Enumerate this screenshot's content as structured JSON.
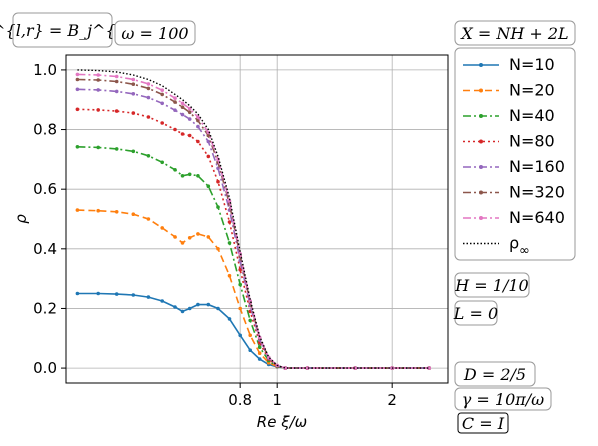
{
  "annotations": {
    "basis": "B^{l,r} = B_j^{l,r}",
    "omega": "ω = 100",
    "xdef": "X = NH + 2L",
    "H": "H = 1/10",
    "L": "L = 0",
    "D": "D = 2/5",
    "gamma": "γ = 10π/ω",
    "C": "C = I"
  },
  "chart_data": {
    "type": "line",
    "xlabel": "Re ξ/ω",
    "ylabel": "ρ",
    "xscale": "log",
    "xlim": [
      0.28,
      2.8
    ],
    "ylim": [
      -0.05,
      1.05
    ],
    "xticks": [
      {
        "value": 0.8,
        "label": "0.8"
      },
      {
        "value": 1,
        "label": "1"
      },
      {
        "value": 2,
        "label": "2"
      }
    ],
    "yticks": [
      {
        "value": 0.0,
        "label": "0.0"
      },
      {
        "value": 0.2,
        "label": "0.2"
      },
      {
        "value": 0.4,
        "label": "0.4"
      },
      {
        "value": 0.6,
        "label": "0.6"
      },
      {
        "value": 0.8,
        "label": "0.8"
      },
      {
        "value": 1.0,
        "label": "1.0"
      }
    ],
    "grid": true,
    "legend_position": "right",
    "series": [
      {
        "name": "N=10",
        "color": "#1f77b4",
        "dash": "solid",
        "marker": true,
        "points": [
          [
            0.3,
            0.25
          ],
          [
            0.34,
            0.25
          ],
          [
            0.38,
            0.248
          ],
          [
            0.42,
            0.245
          ],
          [
            0.46,
            0.238
          ],
          [
            0.5,
            0.225
          ],
          [
            0.54,
            0.205
          ],
          [
            0.565,
            0.19
          ],
          [
            0.59,
            0.2
          ],
          [
            0.62,
            0.213
          ],
          [
            0.66,
            0.213
          ],
          [
            0.7,
            0.2
          ],
          [
            0.75,
            0.165
          ],
          [
            0.8,
            0.11
          ],
          [
            0.85,
            0.06
          ],
          [
            0.9,
            0.03
          ],
          [
            0.95,
            0.012
          ],
          [
            1.0,
            0.004
          ],
          [
            1.05,
            0.0
          ],
          [
            1.2,
            0.0
          ],
          [
            1.6,
            0.0
          ],
          [
            2.0,
            0.0
          ],
          [
            2.5,
            0.0
          ]
        ]
      },
      {
        "name": "N=20",
        "color": "#ff7f0e",
        "dash": "dashed",
        "marker": true,
        "points": [
          [
            0.3,
            0.53
          ],
          [
            0.34,
            0.528
          ],
          [
            0.38,
            0.524
          ],
          [
            0.42,
            0.516
          ],
          [
            0.46,
            0.5
          ],
          [
            0.5,
            0.47
          ],
          [
            0.54,
            0.44
          ],
          [
            0.565,
            0.42
          ],
          [
            0.59,
            0.437
          ],
          [
            0.62,
            0.45
          ],
          [
            0.66,
            0.44
          ],
          [
            0.7,
            0.4
          ],
          [
            0.75,
            0.31
          ],
          [
            0.8,
            0.2
          ],
          [
            0.85,
            0.11
          ],
          [
            0.9,
            0.05
          ],
          [
            0.95,
            0.018
          ],
          [
            1.0,
            0.005
          ],
          [
            1.05,
            0.0
          ],
          [
            1.2,
            0.0
          ],
          [
            1.6,
            0.0
          ],
          [
            2.0,
            0.0
          ],
          [
            2.5,
            0.0
          ]
        ]
      },
      {
        "name": "N=40",
        "color": "#2ca02c",
        "dash": "dashdot",
        "marker": true,
        "points": [
          [
            0.3,
            0.742
          ],
          [
            0.34,
            0.74
          ],
          [
            0.38,
            0.735
          ],
          [
            0.42,
            0.727
          ],
          [
            0.46,
            0.712
          ],
          [
            0.5,
            0.69
          ],
          [
            0.54,
            0.665
          ],
          [
            0.565,
            0.645
          ],
          [
            0.59,
            0.65
          ],
          [
            0.62,
            0.645
          ],
          [
            0.66,
            0.61
          ],
          [
            0.7,
            0.54
          ],
          [
            0.75,
            0.42
          ],
          [
            0.8,
            0.28
          ],
          [
            0.85,
            0.16
          ],
          [
            0.9,
            0.07
          ],
          [
            0.95,
            0.025
          ],
          [
            1.0,
            0.006
          ],
          [
            1.05,
            0.0
          ],
          [
            1.2,
            0.0
          ],
          [
            1.6,
            0.0
          ],
          [
            2.0,
            0.0
          ],
          [
            2.5,
            0.0
          ]
        ]
      },
      {
        "name": "N=80",
        "color": "#d62728",
        "dash": "dotted",
        "marker": true,
        "points": [
          [
            0.3,
            0.868
          ],
          [
            0.34,
            0.866
          ],
          [
            0.38,
            0.862
          ],
          [
            0.42,
            0.855
          ],
          [
            0.46,
            0.842
          ],
          [
            0.5,
            0.822
          ],
          [
            0.54,
            0.8
          ],
          [
            0.565,
            0.785
          ],
          [
            0.59,
            0.78
          ],
          [
            0.62,
            0.76
          ],
          [
            0.66,
            0.71
          ],
          [
            0.7,
            0.625
          ],
          [
            0.75,
            0.49
          ],
          [
            0.8,
            0.33
          ],
          [
            0.85,
            0.19
          ],
          [
            0.9,
            0.085
          ],
          [
            0.95,
            0.03
          ],
          [
            1.0,
            0.007
          ],
          [
            1.05,
            0.0
          ],
          [
            1.2,
            0.0
          ],
          [
            1.6,
            0.0
          ],
          [
            2.0,
            0.0
          ],
          [
            2.5,
            0.0
          ]
        ]
      },
      {
        "name": "N=160",
        "color": "#9467bd",
        "dash": "dashdot",
        "marker": true,
        "points": [
          [
            0.3,
            0.935
          ],
          [
            0.34,
            0.933
          ],
          [
            0.38,
            0.928
          ],
          [
            0.42,
            0.92
          ],
          [
            0.46,
            0.907
          ],
          [
            0.5,
            0.888
          ],
          [
            0.54,
            0.865
          ],
          [
            0.565,
            0.85
          ],
          [
            0.59,
            0.835
          ],
          [
            0.62,
            0.81
          ],
          [
            0.66,
            0.76
          ],
          [
            0.7,
            0.67
          ],
          [
            0.75,
            0.53
          ],
          [
            0.8,
            0.36
          ],
          [
            0.85,
            0.21
          ],
          [
            0.9,
            0.095
          ],
          [
            0.95,
            0.033
          ],
          [
            1.0,
            0.008
          ],
          [
            1.05,
            0.0
          ],
          [
            1.2,
            0.0
          ],
          [
            1.6,
            0.0
          ],
          [
            2.0,
            0.0
          ],
          [
            2.5,
            0.0
          ]
        ]
      },
      {
        "name": "N=320",
        "color": "#8c564b",
        "dash": "dashdot",
        "marker": true,
        "points": [
          [
            0.3,
            0.968
          ],
          [
            0.34,
            0.966
          ],
          [
            0.38,
            0.961
          ],
          [
            0.42,
            0.952
          ],
          [
            0.46,
            0.938
          ],
          [
            0.5,
            0.918
          ],
          [
            0.54,
            0.892
          ],
          [
            0.565,
            0.875
          ],
          [
            0.59,
            0.858
          ],
          [
            0.62,
            0.83
          ],
          [
            0.66,
            0.78
          ],
          [
            0.7,
            0.69
          ],
          [
            0.75,
            0.55
          ],
          [
            0.8,
            0.375
          ],
          [
            0.85,
            0.22
          ],
          [
            0.9,
            0.1
          ],
          [
            0.95,
            0.035
          ],
          [
            1.0,
            0.008
          ],
          [
            1.05,
            0.0
          ],
          [
            1.2,
            0.0
          ],
          [
            1.6,
            0.0
          ],
          [
            2.0,
            0.0
          ],
          [
            2.5,
            0.0
          ]
        ]
      },
      {
        "name": "N=640",
        "color": "#e377c2",
        "dash": "dashdot",
        "marker": true,
        "points": [
          [
            0.3,
            0.985
          ],
          [
            0.34,
            0.983
          ],
          [
            0.38,
            0.978
          ],
          [
            0.42,
            0.968
          ],
          [
            0.46,
            0.953
          ],
          [
            0.5,
            0.932
          ],
          [
            0.54,
            0.905
          ],
          [
            0.565,
            0.888
          ],
          [
            0.59,
            0.87
          ],
          [
            0.62,
            0.842
          ],
          [
            0.66,
            0.79
          ],
          [
            0.7,
            0.7
          ],
          [
            0.75,
            0.56
          ],
          [
            0.8,
            0.383
          ],
          [
            0.85,
            0.225
          ],
          [
            0.9,
            0.103
          ],
          [
            0.95,
            0.036
          ],
          [
            1.0,
            0.009
          ],
          [
            1.05,
            0.0
          ],
          [
            1.2,
            0.0
          ],
          [
            1.6,
            0.0
          ],
          [
            2.0,
            0.0
          ],
          [
            2.5,
            0.0
          ]
        ]
      },
      {
        "name": "ρ∞",
        "label_main": "ρ",
        "label_sub": "∞",
        "color": "#000000",
        "dash": "finedot",
        "marker": false,
        "points": [
          [
            0.3,
            1.0
          ],
          [
            0.34,
            0.998
          ],
          [
            0.38,
            0.993
          ],
          [
            0.42,
            0.983
          ],
          [
            0.46,
            0.968
          ],
          [
            0.5,
            0.947
          ],
          [
            0.54,
            0.918
          ],
          [
            0.565,
            0.9
          ],
          [
            0.59,
            0.88
          ],
          [
            0.62,
            0.852
          ],
          [
            0.66,
            0.8
          ],
          [
            0.7,
            0.71
          ],
          [
            0.75,
            0.57
          ],
          [
            0.8,
            0.39
          ],
          [
            0.85,
            0.23
          ],
          [
            0.9,
            0.106
          ],
          [
            0.95,
            0.037
          ],
          [
            1.0,
            0.009
          ],
          [
            1.05,
            0.0
          ],
          [
            1.2,
            0.0
          ],
          [
            1.6,
            0.0
          ],
          [
            2.0,
            0.0
          ],
          [
            2.5,
            0.0
          ]
        ]
      }
    ]
  }
}
